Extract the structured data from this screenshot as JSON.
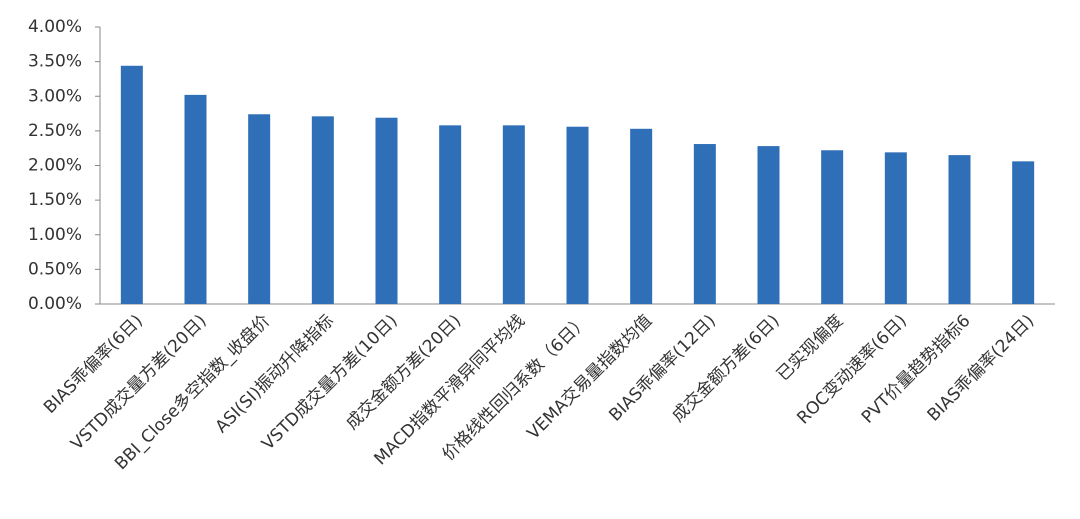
{
  "chart_data": {
    "type": "bar",
    "categories": [
      "BIAS乖偏率(6日)",
      "VSTD成交量方差(20日)",
      "BBI_Close多空指数_收盘价",
      "ASI(SI)振动升降指标",
      "VSTD成交量方差(10日)",
      "成交金额方差(20日)",
      "MACD指数平滑异同平均线",
      "价格线性回归系数（6日）",
      "VEMA交易量指数均值",
      "BIAS乖偏率(12日)",
      "成交金额方差(6日)",
      "已实现偏度",
      "ROC变动速率(6日)",
      "PVT价量趋势指标6",
      "BIAS乖偏率(24日)"
    ],
    "values": [
      3.44,
      3.02,
      2.74,
      2.71,
      2.69,
      2.58,
      2.58,
      2.56,
      2.53,
      2.31,
      2.28,
      2.22,
      2.19,
      2.15,
      2.06
    ],
    "color": "#2e6fb7",
    "ylim": [
      0,
      4
    ],
    "yticks": [
      {
        "value": 0,
        "label": "0.00%"
      },
      {
        "value": 0.5,
        "label": "0.50%"
      },
      {
        "value": 1,
        "label": "1.00%"
      },
      {
        "value": 1.5,
        "label": "1.50%"
      },
      {
        "value": 2,
        "label": "2.00%"
      },
      {
        "value": 2.5,
        "label": "2.50%"
      },
      {
        "value": 3,
        "label": "3.00%"
      },
      {
        "value": 3.5,
        "label": "3.50%"
      },
      {
        "value": 4,
        "label": "4.00%"
      }
    ],
    "grid": false
  }
}
